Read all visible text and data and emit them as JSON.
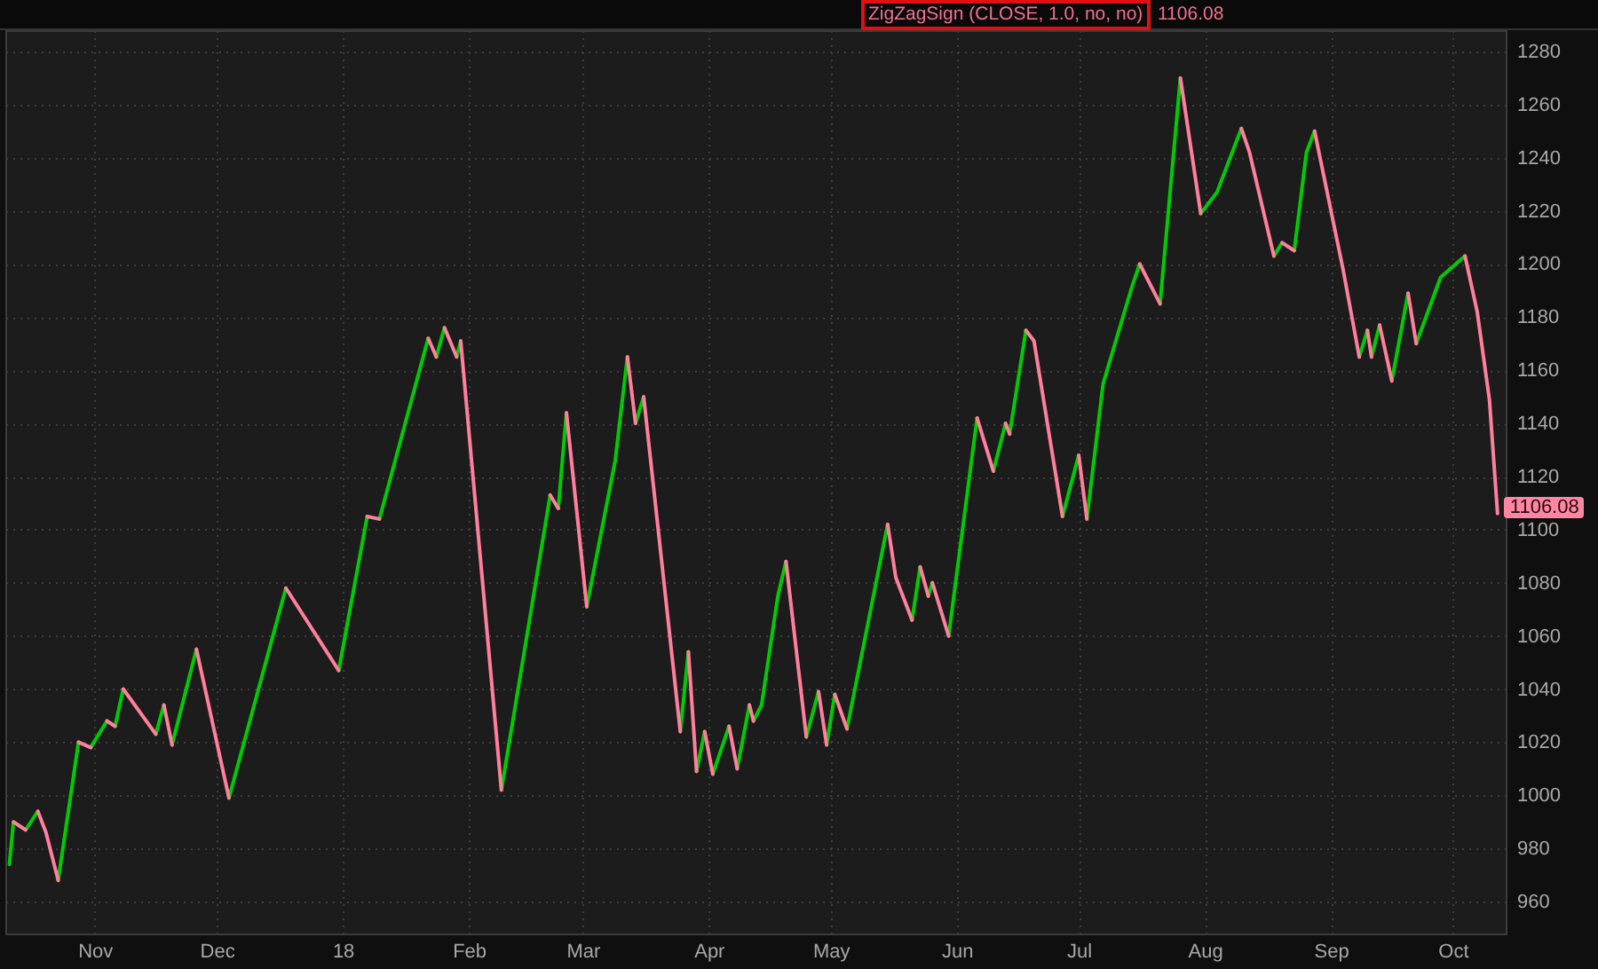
{
  "chart_data": {
    "type": "line",
    "title": "ZigZagSign (CLOSE, 1.0, no, no)",
    "annotations": [
      "1106.08",
      {
        "text": "1106.08",
        "x": "2018-10-12",
        "y": 1106.08
      }
    ],
    "xlim": [
      "2017-10-10",
      "2018-10-14"
    ],
    "xticks": [
      {
        "value": "2017-11-01",
        "label": "Nov"
      },
      {
        "value": "2017-12-01",
        "label": "Dec"
      },
      {
        "value": "2018-01-01",
        "label": "18"
      },
      {
        "value": "2018-02-01",
        "label": "Feb"
      },
      {
        "value": "2018-03-01",
        "label": "Mar"
      },
      {
        "value": "2018-04-01",
        "label": "Apr"
      },
      {
        "value": "2018-05-01",
        "label": "May"
      },
      {
        "value": "2018-06-01",
        "label": "Jun"
      },
      {
        "value": "2018-07-01",
        "label": "Jul"
      },
      {
        "value": "2018-08-01",
        "label": "Aug"
      },
      {
        "value": "2018-09-01",
        "label": "Sep"
      },
      {
        "value": "2018-10-01",
        "label": "Oct"
      }
    ],
    "ylim": [
      948,
      1288
    ],
    "yticks": [
      960,
      980,
      1000,
      1020,
      1040,
      1060,
      1080,
      1100,
      1120,
      1140,
      1160,
      1180,
      1200,
      1220,
      1240,
      1260,
      1280
    ],
    "grid": true,
    "series": [
      {
        "color": "#00cc00",
        "x": [
          "2017-10-11",
          "2017-10-12",
          "2017-10-13",
          "2017-10-15",
          "2017-10-18",
          "2017-10-19",
          "2017-10-23",
          "2017-10-28",
          "2017-10-29",
          "2017-10-31",
          "2017-11-04",
          "2017-11-05",
          "2017-11-06",
          "2017-11-08",
          "2017-11-09",
          "2017-11-16",
          "2017-11-18",
          "2017-11-19",
          "2017-11-20",
          "2017-11-26",
          "2017-11-27",
          "2017-12-04",
          "2017-12-18",
          "2017-12-19",
          "2017-12-31",
          "2018-01-07",
          "2018-01-08",
          "2018-01-10",
          "2018-01-22",
          "2018-01-23",
          "2018-01-24",
          "2018-01-26",
          "2018-01-27",
          "2018-01-29",
          "2018-01-30",
          "2018-01-31",
          "2018-02-09",
          "2018-02-21",
          "2018-02-22",
          "2018-02-23",
          "2018-02-25",
          "2018-02-26",
          "2018-03-02",
          "2018-03-09",
          "2018-03-12",
          "2018-03-13",
          "2018-03-14",
          "2018-03-16",
          "2018-03-17",
          "2018-03-25",
          "2018-03-27",
          "2018-03-28",
          "2018-03-29",
          "2018-03-31",
          "2018-04-01",
          "2018-04-02",
          "2018-04-06",
          "2018-04-07",
          "2018-04-08",
          "2018-04-11",
          "2018-04-11T12:00",
          "2018-04-12",
          "2018-04-14",
          "2018-04-18",
          "2018-04-20",
          "2018-04-21",
          "2018-04-25",
          "2018-04-28",
          "2018-04-29",
          "2018-04-30",
          "2018-05-02",
          "2018-05-03",
          "2018-05-05",
          "2018-05-15",
          "2018-05-16",
          "2018-05-21",
          "2018-05-23",
          "2018-05-24",
          "2018-05-25",
          "2018-05-26",
          "2018-05-27",
          "2018-05-30",
          "2018-06-06",
          "2018-06-07",
          "2018-06-10",
          "2018-06-13",
          "2018-06-13T12:00",
          "2018-06-14",
          "2018-06-18",
          "2018-06-19",
          "2018-06-27",
          "2018-07-01",
          "2018-07-02",
          "2018-07-03",
          "2018-07-07",
          "2018-07-14",
          "2018-07-16",
          "2018-07-17",
          "2018-07-21",
          "2018-07-26",
          "2018-07-27",
          "2018-07-31",
          "2018-08-04",
          "2018-08-10",
          "2018-08-11",
          "2018-08-18",
          "2018-08-20",
          "2018-08-21",
          "2018-08-23",
          "2018-08-26",
          "2018-08-28",
          "2018-08-29",
          "2018-09-08",
          "2018-09-10",
          "2018-09-10T12:00",
          "2018-09-11",
          "2018-09-13",
          "2018-09-14",
          "2018-09-16",
          "2018-09-20",
          "2018-09-21",
          "2018-09-22",
          "2018-09-28",
          "2018-10-04"
        ],
        "values": [
          974,
          990,
          null,
          987,
          994,
          null,
          968,
          1020,
          null,
          1018,
          1028,
          null,
          1026,
          1040,
          null,
          1023,
          1034,
          null,
          1019,
          1055,
          null,
          999,
          1078,
          null,
          1047,
          1105,
          null,
          1104,
          1172,
          null,
          1165,
          1176,
          null,
          1165,
          1171,
          null,
          1002,
          1113,
          null,
          1108,
          1144,
          null,
          1071,
          1126,
          1165,
          null,
          1140,
          1150,
          null,
          1024,
          1054,
          null,
          1009,
          1024,
          null,
          1008,
          1026,
          null,
          1010,
          1034,
          null,
          1028,
          1034,
          1075,
          1088,
          null,
          1022,
          1039,
          null,
          1019,
          1038,
          null,
          1025,
          1102,
          null,
          1066,
          1086,
          null,
          1075,
          1080,
          null,
          1060,
          1142,
          null,
          1122,
          1140,
          null,
          1136,
          1175,
          null,
          1105,
          1128,
          null,
          1104,
          1155,
          1191,
          1200,
          null,
          1185,
          1270,
          null,
          1219,
          1227,
          1251,
          null,
          1203,
          1208,
          null,
          1205,
          1242,
          1250,
          null,
          1165,
          1175,
          null,
          1165,
          1177,
          null,
          1156,
          1189,
          null,
          1170,
          1195,
          1203
        ]
      },
      {
        "color": "#ff7f9c",
        "x": [
          "2017-10-12",
          "2017-10-15",
          "2017-10-16",
          "2017-10-18",
          "2017-10-20",
          "2017-10-23",
          "2017-10-24",
          "2017-10-28",
          "2017-10-31",
          "2017-11-01",
          "2017-11-04",
          "2017-11-06",
          "2017-11-07",
          "2017-11-08",
          "2017-11-16",
          "2017-11-17",
          "2017-11-18",
          "2017-11-20",
          "2017-11-21",
          "2017-11-26",
          "2017-12-04",
          "2017-12-05",
          "2017-12-18",
          "2017-12-31",
          "2018-01-01",
          "2018-01-07",
          "2018-01-10",
          "2018-01-11",
          "2018-01-22",
          "2018-01-24",
          "2018-01-25",
          "2018-01-26",
          "2018-01-29",
          "2018-01-29T12:00",
          "2018-01-30",
          "2018-02-09",
          "2018-02-10",
          "2018-02-21",
          "2018-02-23",
          "2018-02-24",
          "2018-02-25",
          "2018-03-02",
          "2018-03-03",
          "2018-03-12",
          "2018-03-14",
          "2018-03-15",
          "2018-03-16",
          "2018-03-25",
          "2018-03-26",
          "2018-03-27",
          "2018-03-29",
          "2018-03-30",
          "2018-03-31",
          "2018-04-02",
          "2018-04-03",
          "2018-04-06",
          "2018-04-08",
          "2018-04-09",
          "2018-04-11",
          "2018-04-12",
          "2018-04-13",
          "2018-04-20",
          "2018-04-25",
          "2018-04-26",
          "2018-04-28",
          "2018-04-30",
          "2018-05-01",
          "2018-05-02",
          "2018-05-05",
          "2018-05-06",
          "2018-05-15",
          "2018-05-17",
          "2018-05-21",
          "2018-05-22",
          "2018-05-23",
          "2018-05-25",
          "2018-05-25T12:00",
          "2018-05-26",
          "2018-05-30",
          "2018-05-31",
          "2018-06-06",
          "2018-06-10",
          "2018-06-11",
          "2018-06-13",
          "2018-06-14",
          "2018-06-15",
          "2018-06-18",
          "2018-06-20",
          "2018-06-27",
          "2018-06-28",
          "2018-07-01",
          "2018-07-03",
          "2018-07-04",
          "2018-07-16",
          "2018-07-21",
          "2018-07-22",
          "2018-07-26",
          "2018-07-31",
          "2018-08-01",
          "2018-08-10",
          "2018-08-12",
          "2018-08-18",
          "2018-08-19",
          "2018-08-20",
          "2018-08-23",
          "2018-08-24",
          "2018-08-28",
          "2018-09-04",
          "2018-09-08",
          "2018-09-09",
          "2018-09-10",
          "2018-09-11",
          "2018-09-12",
          "2018-09-13",
          "2018-09-16",
          "2018-09-17",
          "2018-09-20",
          "2018-09-22",
          "2018-09-23",
          "2018-10-04",
          "2018-10-07",
          "2018-10-10",
          "2018-10-12"
        ],
        "values": [
          990,
          987,
          null,
          994,
          986,
          968,
          null,
          1020,
          1018,
          null,
          1028,
          1026,
          null,
          1040,
          1023,
          null,
          1034,
          1019,
          null,
          1055,
          999,
          null,
          1078,
          1047,
          null,
          1105,
          1104,
          null,
          1172,
          1165,
          null,
          1176,
          1165,
          null,
          1171,
          1002,
          null,
          1113,
          1108,
          null,
          1144,
          1071,
          null,
          1165,
          1140,
          null,
          1150,
          1024,
          null,
          1054,
          1009,
          null,
          1024,
          1008,
          null,
          1026,
          1010,
          null,
          1034,
          1028,
          null,
          1088,
          1022,
          null,
          1039,
          1019,
          null,
          1038,
          1025,
          null,
          1102,
          1082,
          1066,
          null,
          1086,
          1075,
          null,
          1080,
          1060,
          null,
          1142,
          1122,
          null,
          1140,
          1136,
          null,
          1175,
          1171,
          1105,
          null,
          1128,
          1104,
          null,
          1200,
          1185,
          null,
          1270,
          1219,
          null,
          1251,
          1242,
          1203,
          null,
          1208,
          1205,
          null,
          1250,
          1198,
          1165,
          null,
          1175,
          1165,
          null,
          1177,
          1156,
          null,
          1189,
          1170,
          null,
          1203,
          1182,
          1149,
          1106.08
        ]
      }
    ]
  }
}
